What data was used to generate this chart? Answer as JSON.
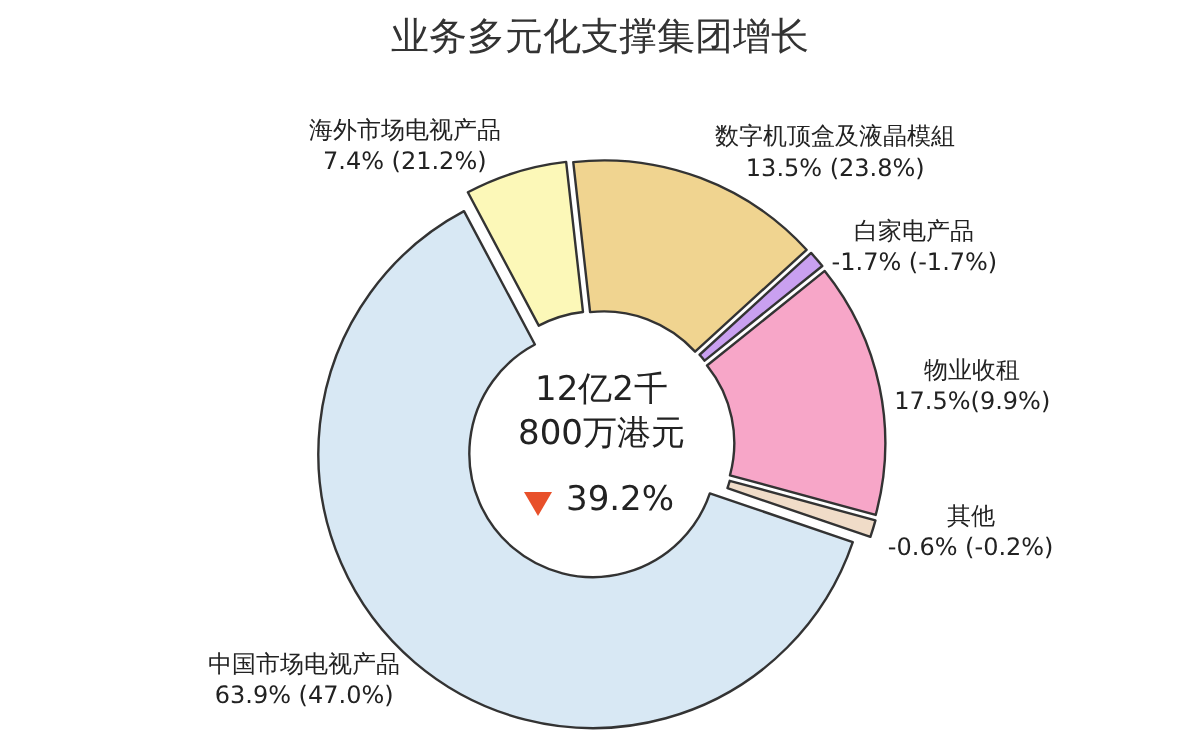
{
  "chart_data": {
    "type": "donut",
    "title": "业务多元化支撑集团增长",
    "categories": [
      "海外市场电视产品",
      "数字机顶盒及液晶模組",
      "白家电产品",
      "物业收租",
      "其他",
      "中国市场电视产品"
    ],
    "values": [
      6,
      15,
      1,
      15,
      1,
      62
    ],
    "colors": [
      "#fcf8b8",
      "#f0d490",
      "#c9a0f0",
      "#f7a6c8",
      "#f0dcc8",
      "#d8e8f4"
    ],
    "annotations": [
      "12亿2千\n800万港元",
      "39.2%",
      {
        "text": "7.4% (21.2%)",
        "x": "海外市场电视产品"
      },
      {
        "text": "13.5% (23.8%)",
        "x": "数字机顶盒及液晶模組"
      },
      {
        "text": "-1.7% (-1.7%)",
        "x": "白家电产品"
      },
      {
        "text": "17.5%(9.9%)",
        "x": "物业收租"
      },
      {
        "text": "-0.6% (-0.2%)",
        "x": "其他"
      },
      {
        "text": "63.9% (47.0%)",
        "x": "中国市场电视产品"
      }
    ],
    "legend": false
  }
}
